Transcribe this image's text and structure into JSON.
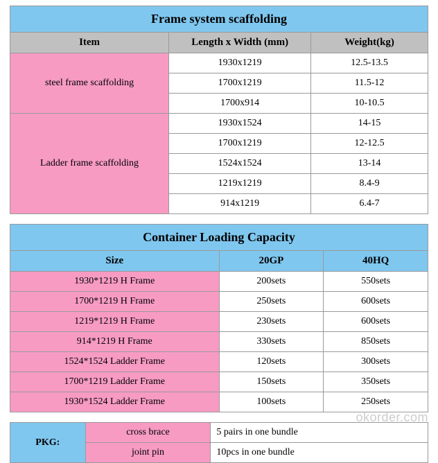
{
  "colors": {
    "blue": "#7fc7ef",
    "grey": "#c0c0c0",
    "pink": "#f79bc3",
    "border": "#999999",
    "text": "#000000",
    "watermark": "#cccccc"
  },
  "table1": {
    "title": "Frame system scaffolding",
    "headers": [
      "Item",
      "Length x Width (mm)",
      "Weight(kg)"
    ],
    "col_widths": [
      "38%",
      "34%",
      "28%"
    ],
    "groups": [
      {
        "label": "steel  frame scaffolding",
        "rows": [
          {
            "dim": "1930x1219",
            "weight": "12.5-13.5"
          },
          {
            "dim": "1700x1219",
            "weight": "11.5-12"
          },
          {
            "dim": "1700x914",
            "weight": "10-10.5"
          }
        ]
      },
      {
        "label": "Ladder frame scaffolding",
        "rows": [
          {
            "dim": "1930x1524",
            "weight": "14-15"
          },
          {
            "dim": "1700x1219",
            "weight": "12-12.5"
          },
          {
            "dim": "1524x1524",
            "weight": "13-14"
          },
          {
            "dim": "1219x1219",
            "weight": "8.4-9"
          },
          {
            "dim": "914x1219",
            "weight": "6.4-7"
          }
        ]
      }
    ]
  },
  "table2": {
    "title": "Container Loading Capacity",
    "headers": [
      "Size",
      "20GP",
      "40HQ"
    ],
    "col_widths": [
      "50%",
      "25%",
      "25%"
    ],
    "rows": [
      {
        "size": "1930*1219 H Frame",
        "c20": "200sets",
        "c40": "550sets"
      },
      {
        "size": "1700*1219 H Frame",
        "c20": "250sets",
        "c40": "600sets"
      },
      {
        "size": "1219*1219 H Frame",
        "c20": "230sets",
        "c40": "600sets"
      },
      {
        "size": "914*1219 H Frame",
        "c20": "330sets",
        "c40": "850sets"
      },
      {
        "size": "1524*1524 Ladder Frame",
        "c20": "120sets",
        "c40": "300sets"
      },
      {
        "size": "1700*1219 Ladder Frame",
        "c20": "150sets",
        "c40": "350sets"
      },
      {
        "size": "1930*1524 Ladder Frame",
        "c20": "100sets",
        "c40": "250sets"
      }
    ]
  },
  "pkg": {
    "label": "PKG:",
    "col_widths": [
      "18%",
      "30%",
      "52%"
    ],
    "rows": [
      {
        "item": "cross brace",
        "desc": "5 pairs in one bundle"
      },
      {
        "item": "joint pin",
        "desc": "10pcs in one bundle"
      }
    ]
  },
  "watermark": "okorder.com"
}
